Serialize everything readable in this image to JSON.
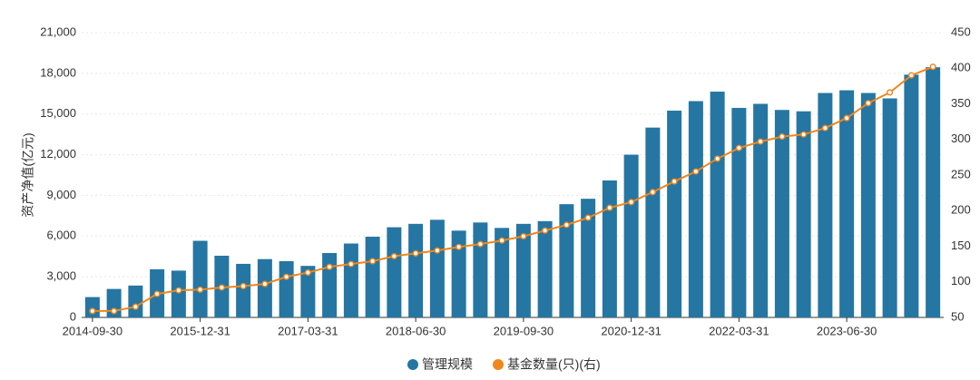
{
  "chart_data": {
    "type": "bar-line",
    "y_label": "资产净值(亿元)",
    "categories": [
      "2014-09-30",
      null,
      null,
      null,
      null,
      "2015-12-31",
      null,
      null,
      null,
      null,
      "2017-03-31",
      null,
      null,
      null,
      null,
      "2018-06-30",
      null,
      null,
      null,
      null,
      "2019-09-30",
      null,
      null,
      null,
      null,
      "2020-12-31",
      null,
      null,
      null,
      null,
      "2022-03-31",
      null,
      null,
      null,
      null,
      "2023-06-30",
      null,
      null,
      null,
      null
    ],
    "series": [
      {
        "name": "管理规模",
        "color": "#2576a2",
        "type": "bar",
        "values": [
          1500,
          2100,
          2350,
          3550,
          3450,
          5650,
          4550,
          3950,
          4300,
          4150,
          3800,
          4750,
          5450,
          5950,
          6650,
          6900,
          7200,
          6400,
          7000,
          6600,
          6900,
          7100,
          8350,
          8750,
          10100,
          12000,
          14000,
          15250,
          15950,
          16650,
          15450,
          15750,
          15300,
          15200,
          16550,
          16750,
          16550,
          16150,
          17900,
          18450
        ]
      },
      {
        "name": "基金数量(只)(右)",
        "color": "#f0861d",
        "type": "line",
        "axis": "y2",
        "values": [
          59,
          59,
          65,
          83,
          88,
          89,
          92,
          94,
          97,
          107,
          113,
          121,
          125,
          129,
          136,
          140,
          144,
          149,
          153,
          158,
          164,
          172,
          180,
          190,
          204,
          212,
          226,
          241,
          255,
          273,
          288,
          297,
          304,
          307,
          316,
          330,
          351,
          366,
          390,
          402
        ]
      }
    ],
    "ylim": [
      0,
      21000
    ],
    "yticks": [
      0,
      {
        "value": 3000,
        "label": "3,000"
      },
      {
        "value": 6000,
        "label": "6,000"
      },
      {
        "value": 9000,
        "label": "9,000"
      },
      {
        "value": 12000,
        "label": "12,000"
      },
      {
        "value": 15000,
        "label": "15,000"
      },
      {
        "value": 18000,
        "label": "18,000"
      },
      {
        "value": 21000,
        "label": "21,000"
      }
    ],
    "y2lim": [
      50,
      450
    ],
    "y2ticks": [
      50,
      100,
      150,
      200,
      250,
      300,
      350,
      400,
      450
    ],
    "grid": true,
    "legend": "bottom"
  }
}
